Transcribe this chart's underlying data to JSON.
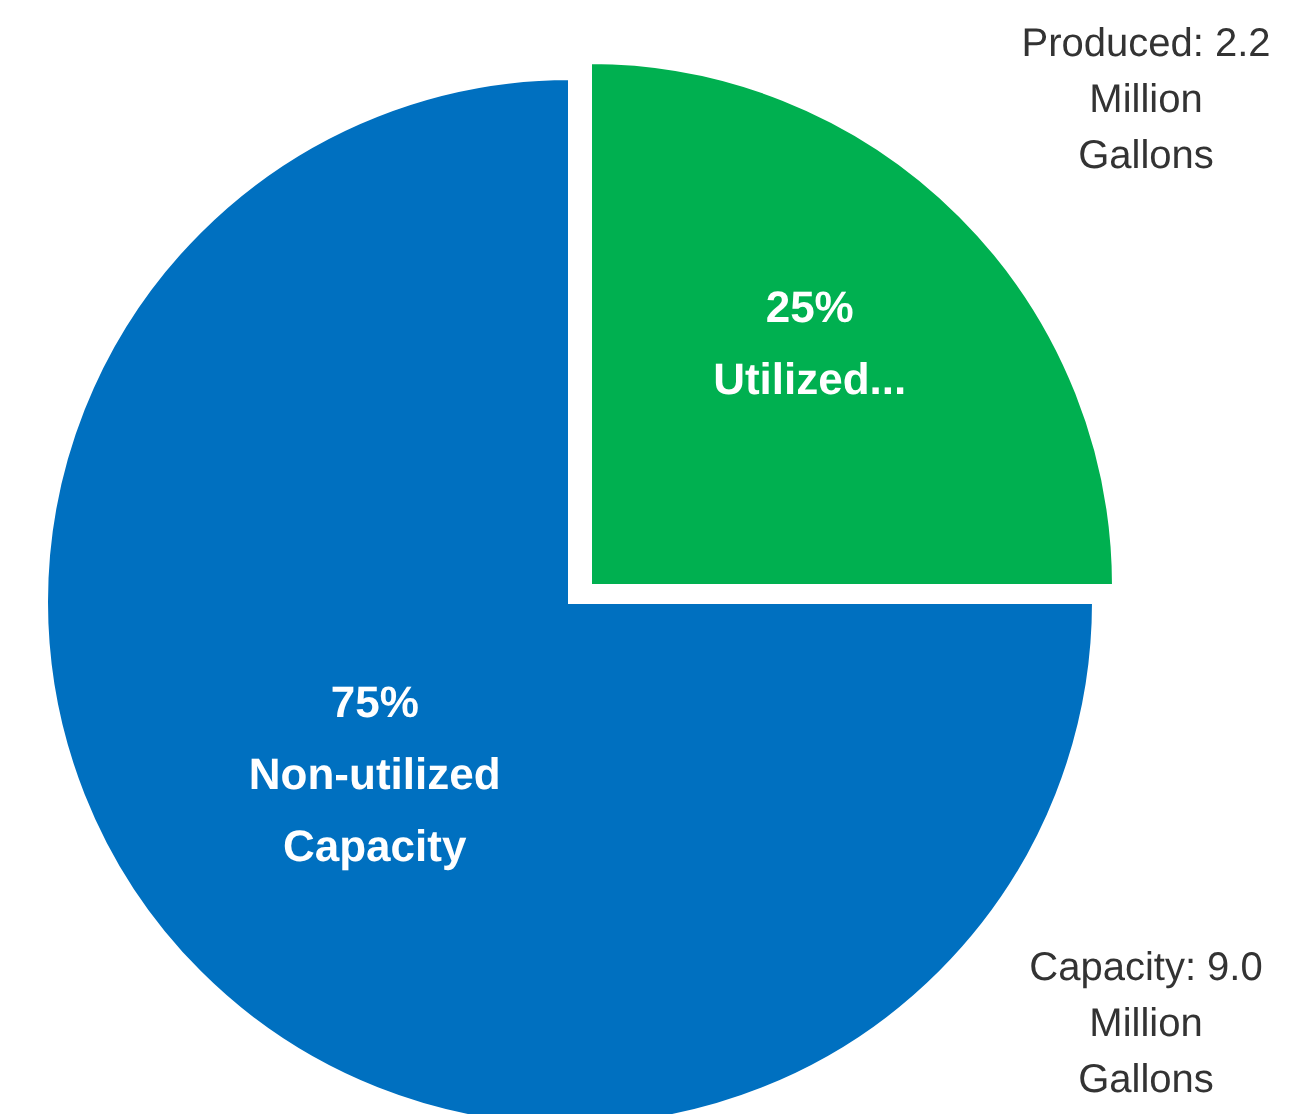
{
  "chart_data": {
    "type": "pie",
    "categories": [
      "Utilized...",
      "Non-utilized Capacity"
    ],
    "values": [
      25,
      75
    ],
    "colors": [
      "#00b050",
      "#0070c0"
    ],
    "value_labels": [
      "25%",
      "75%"
    ],
    "legend": false,
    "annotations": [
      "Produced: 2.2 Million Gallons",
      "Capacity: 9.0 Million Gallons"
    ]
  }
}
